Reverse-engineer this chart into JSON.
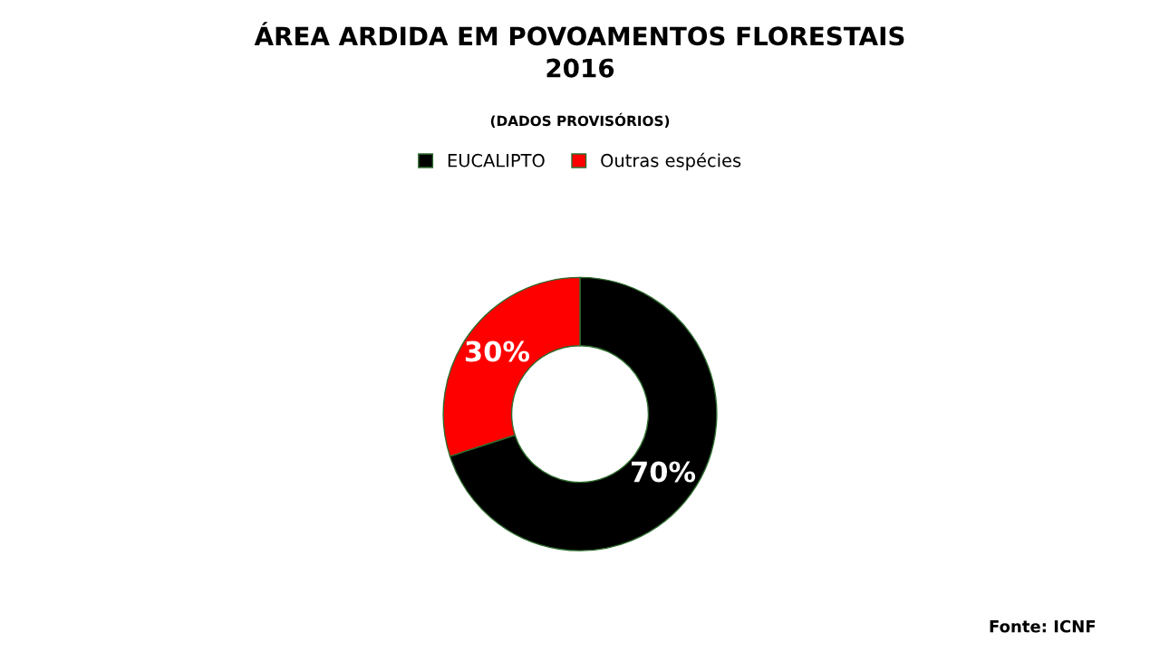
{
  "chart_data": {
    "type": "donut",
    "title": "ÁREA ARDIDA EM POVOAMENTOS FLORESTAIS\n2016",
    "subtitle": "(DADOS PROVISÓRIOS)",
    "categories": [
      "EUCALIPTO",
      "Outras espécies"
    ],
    "values": [
      70,
      30
    ],
    "colors": [
      "#000000",
      "#ff0000"
    ],
    "value_labels": [
      "70%",
      "30%"
    ],
    "legend": "top",
    "annotations": [
      "Fonte: ICNF"
    ]
  }
}
